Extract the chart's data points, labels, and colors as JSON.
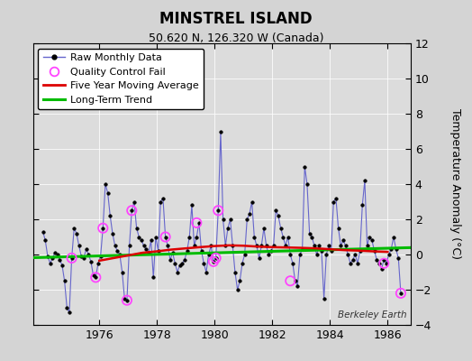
{
  "title": "MINSTREL ISLAND",
  "subtitle": "50.620 N, 126.320 W (Canada)",
  "ylabel": "Temperature Anomaly (°C)",
  "watermark": "Berkeley Earth",
  "xlim": [
    1973.7,
    1986.8
  ],
  "ylim": [
    -4,
    12
  ],
  "yticks": [
    -4,
    -2,
    0,
    2,
    4,
    6,
    8,
    10,
    12
  ],
  "xticks": [
    1976,
    1978,
    1980,
    1982,
    1984,
    1986
  ],
  "fig_bg": "#d4d4d4",
  "plot_bg": "#dcdcdc",
  "raw_line_color": "#6666cc",
  "raw_marker_color": "#000000",
  "ma_color": "#dd0000",
  "trend_color": "#00bb00",
  "qc_color": "#ff44ff",
  "raw_x": [
    1974.042,
    1974.125,
    1974.208,
    1974.292,
    1974.375,
    1974.458,
    1974.542,
    1974.625,
    1974.708,
    1974.792,
    1974.875,
    1974.958,
    1975.042,
    1975.125,
    1975.208,
    1975.292,
    1975.375,
    1975.458,
    1975.542,
    1975.625,
    1975.708,
    1975.792,
    1975.875,
    1975.958,
    1976.042,
    1976.125,
    1976.208,
    1976.292,
    1976.375,
    1976.458,
    1976.542,
    1976.625,
    1976.708,
    1976.792,
    1976.875,
    1976.958,
    1977.042,
    1977.125,
    1977.208,
    1977.292,
    1977.375,
    1977.458,
    1977.542,
    1977.625,
    1977.708,
    1977.792,
    1977.875,
    1977.958,
    1978.042,
    1978.125,
    1978.208,
    1978.292,
    1978.375,
    1978.458,
    1978.542,
    1978.625,
    1978.708,
    1978.792,
    1978.875,
    1978.958,
    1979.042,
    1979.125,
    1979.208,
    1979.292,
    1979.375,
    1979.458,
    1979.542,
    1979.625,
    1979.708,
    1979.792,
    1979.875,
    1979.958,
    1980.042,
    1980.125,
    1980.208,
    1980.292,
    1980.375,
    1980.458,
    1980.542,
    1980.625,
    1980.708,
    1980.792,
    1980.875,
    1980.958,
    1981.042,
    1981.125,
    1981.208,
    1981.292,
    1981.375,
    1981.458,
    1981.542,
    1981.625,
    1981.708,
    1981.792,
    1981.875,
    1981.958,
    1982.042,
    1982.125,
    1982.208,
    1982.292,
    1982.375,
    1982.458,
    1982.542,
    1982.625,
    1982.708,
    1982.792,
    1982.875,
    1982.958,
    1983.042,
    1983.125,
    1983.208,
    1983.292,
    1983.375,
    1983.458,
    1983.542,
    1983.625,
    1983.708,
    1983.792,
    1983.875,
    1983.958,
    1984.042,
    1984.125,
    1984.208,
    1984.292,
    1984.375,
    1984.458,
    1984.542,
    1984.625,
    1984.708,
    1984.792,
    1984.875,
    1984.958,
    1985.042,
    1985.125,
    1985.208,
    1985.292,
    1985.375,
    1985.458,
    1985.542,
    1985.625,
    1985.708,
    1985.792,
    1985.875,
    1985.958,
    1986.042,
    1986.125,
    1986.208,
    1986.292,
    1986.375,
    1986.458
  ],
  "raw_y": [
    1.3,
    0.8,
    -0.1,
    -0.5,
    -0.2,
    0.1,
    0.0,
    -0.3,
    -0.6,
    -1.5,
    -3.0,
    -3.3,
    -0.2,
    1.5,
    1.2,
    0.5,
    -0.1,
    -0.2,
    0.3,
    0.0,
    -0.4,
    -1.2,
    -1.3,
    -0.5,
    -0.1,
    1.5,
    4.0,
    3.5,
    2.2,
    1.2,
    0.5,
    0.2,
    0.0,
    -1.0,
    -2.5,
    -2.6,
    0.5,
    2.5,
    3.0,
    1.5,
    1.0,
    0.8,
    0.5,
    0.3,
    0.1,
    0.8,
    -1.3,
    1.0,
    0.2,
    3.0,
    3.2,
    1.0,
    0.5,
    -0.3,
    0.1,
    -0.5,
    -1.0,
    -0.6,
    -0.5,
    -0.3,
    0.2,
    1.0,
    2.8,
    0.5,
    1.0,
    1.8,
    0.2,
    -0.5,
    -1.0,
    0.0,
    0.5,
    -0.4,
    -0.2,
    2.5,
    7.0,
    2.0,
    0.5,
    1.5,
    2.0,
    0.5,
    -1.0,
    -2.0,
    -1.5,
    -0.5,
    0.0,
    2.0,
    2.3,
    3.0,
    1.0,
    0.5,
    -0.2,
    0.5,
    1.5,
    0.5,
    0.0,
    0.2,
    0.5,
    2.5,
    2.2,
    1.5,
    1.0,
    0.5,
    1.0,
    0.0,
    -0.5,
    -1.5,
    -1.8,
    0.0,
    0.3,
    5.0,
    4.0,
    1.2,
    1.0,
    0.5,
    0.0,
    0.5,
    0.2,
    -2.5,
    0.0,
    0.5,
    0.2,
    3.0,
    3.2,
    1.5,
    0.5,
    0.8,
    0.5,
    0.0,
    -0.5,
    -0.3,
    0.0,
    -0.5,
    0.2,
    2.8,
    4.2,
    0.5,
    1.0,
    0.8,
    0.2,
    -0.3,
    -0.5,
    -0.8,
    -0.3,
    -0.5,
    0.0,
    0.3,
    1.0,
    0.3,
    -0.2,
    -2.2
  ],
  "qc_x": [
    1975.042,
    1975.875,
    1976.125,
    1977.125,
    1976.958,
    1978.292,
    1979.375,
    1979.958,
    1980.042,
    1980.125,
    1982.625,
    1985.875,
    1986.458
  ],
  "qc_y": [
    -0.2,
    -1.3,
    1.5,
    2.5,
    -2.6,
    1.0,
    1.8,
    -0.4,
    -0.2,
    2.5,
    -1.5,
    -0.5,
    -2.2
  ],
  "ma_x": [
    1976.0,
    1976.5,
    1977.0,
    1977.5,
    1978.0,
    1978.5,
    1979.0,
    1979.5,
    1980.0,
    1980.5,
    1981.0,
    1981.5,
    1982.0,
    1982.5,
    1983.0,
    1983.5,
    1984.0,
    1984.5,
    1985.0,
    1985.5,
    1986.0
  ],
  "ma_y": [
    -0.35,
    -0.2,
    -0.05,
    0.1,
    0.18,
    0.28,
    0.35,
    0.42,
    0.48,
    0.52,
    0.5,
    0.45,
    0.42,
    0.4,
    0.38,
    0.35,
    0.3,
    0.25,
    0.22,
    0.18,
    0.15
  ],
  "trend_x": [
    1973.7,
    1987.0
  ],
  "trend_y": [
    -0.18,
    0.4
  ],
  "legend_loc": "upper left",
  "legend_fontsize": 8,
  "title_fontsize": 12,
  "subtitle_fontsize": 9,
  "tick_labelsize": 9
}
